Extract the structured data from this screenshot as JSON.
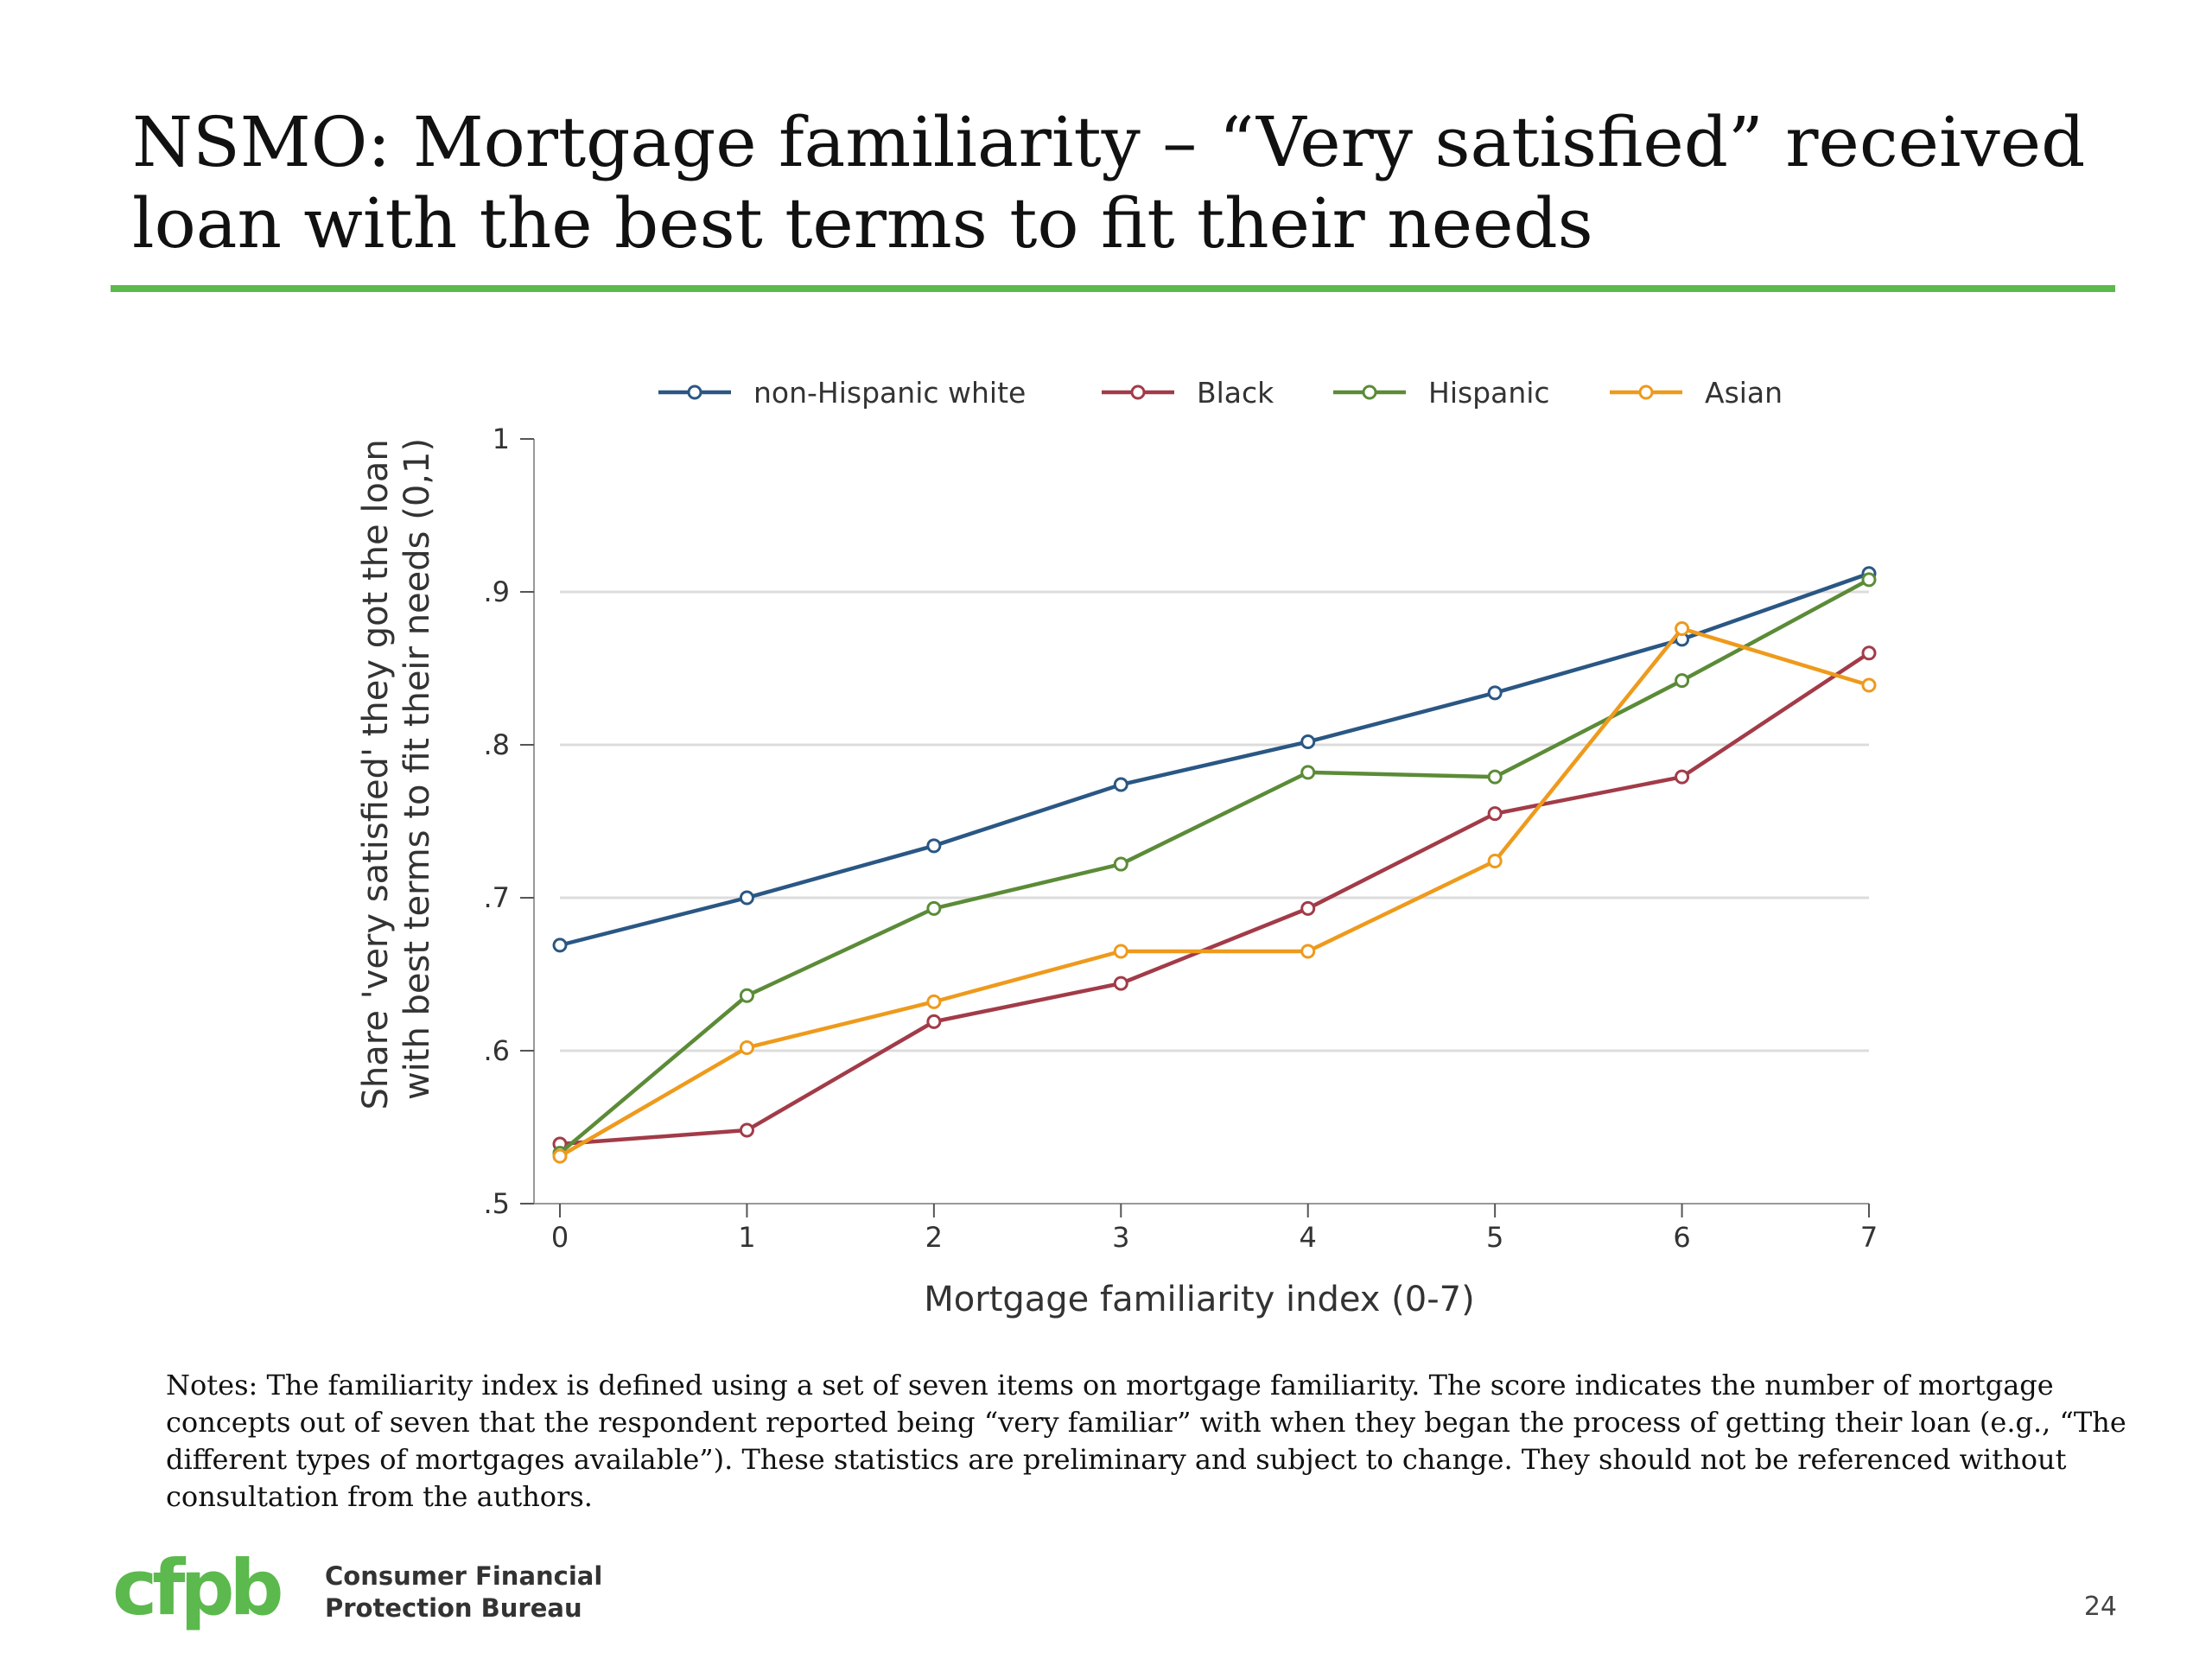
{
  "slide": {
    "title": "NSMO: Mortgage familiarity – “Very satisfied” received loan with the best terms to fit their needs",
    "notes": "Notes: The familiarity index is defined using a set of seven items on mortgage familiarity. The score indicates the number of mortgage concepts out of seven that the respondent reported being “very familiar” with when they began the process of getting their loan (e.g., “The different types of mortgages available”). These statistics are preliminary and subject to change. They should not be referenced without consultation from the authors.",
    "page_number": "24",
    "accent_color": "#5cb94d"
  },
  "logo": {
    "mark": "cfpb",
    "name_line1": "Consumer Financial",
    "name_line2": "Protection Bureau",
    "color": "#5cb94d"
  },
  "chart_data": {
    "type": "line",
    "title": "",
    "xlabel": "Mortgage familiarity index (0-7)",
    "ylabel": [
      "Share 'very satisfied' they got the loan",
      "with best terms to fit their needs (0,1)"
    ],
    "x": [
      0,
      1,
      2,
      3,
      4,
      5,
      6,
      7
    ],
    "x_tick_labels": [
      "0",
      "1",
      "2",
      "3",
      "4",
      "5",
      "6",
      "7"
    ],
    "ylim": [
      0.5,
      1.0
    ],
    "y_ticks": [
      0.5,
      0.6,
      0.7,
      0.8,
      0.9,
      1.0
    ],
    "y_tick_labels": [
      ".5",
      ".6",
      ".7",
      ".8",
      ".9",
      "1"
    ],
    "grid": true,
    "legend_position": "top",
    "series": [
      {
        "name": "non-Hispanic white",
        "color": "#2a5784",
        "values": [
          0.669,
          0.7,
          0.734,
          0.774,
          0.802,
          0.834,
          0.869,
          0.912
        ]
      },
      {
        "name": "Black",
        "color": "#a23b48",
        "values": [
          0.539,
          0.548,
          0.619,
          0.644,
          0.693,
          0.755,
          0.779,
          0.86
        ]
      },
      {
        "name": "Hispanic",
        "color": "#5b8b37",
        "values": [
          0.533,
          0.636,
          0.693,
          0.722,
          0.782,
          0.779,
          0.842,
          0.908
        ]
      },
      {
        "name": "Asian",
        "color": "#ee9a1c",
        "values": [
          0.531,
          0.602,
          0.632,
          0.665,
          0.665,
          0.724,
          0.876,
          0.839
        ]
      }
    ]
  }
}
